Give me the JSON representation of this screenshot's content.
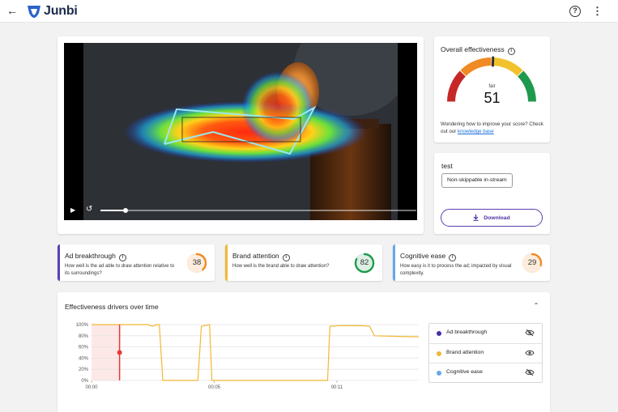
{
  "app": {
    "name": "Junbi"
  },
  "overall": {
    "title": "Overall effectiveness",
    "rating": "fair",
    "score": "51",
    "help_text": "Wondering how to improve your score? Check out our ",
    "help_link": "knowledge base",
    "needle_fraction": 0.51
  },
  "test": {
    "name": "test",
    "placement": "Non-skippable in-stream",
    "download_label": "Download"
  },
  "video": {
    "progress": 0.08
  },
  "metrics": [
    {
      "title": "Ad breakthrough",
      "desc": "How well is the ad able to draw attention relative to its surroundings?",
      "score": "38",
      "fraction": 0.38,
      "color": "#f08a24",
      "stripe": "#5b3fb2"
    },
    {
      "title": "Brand attention",
      "desc": "How well is the brand able to draw attention?",
      "score": "82",
      "fraction": 0.82,
      "color": "#1e9a4e",
      "stripe": "#f2b735"
    },
    {
      "title": "Cognitive ease",
      "desc": "How easy is it to process the ad; impacted by visual complexity.",
      "score": "29",
      "fraction": 0.29,
      "color": "#f08a24",
      "stripe": "#64a8e8"
    }
  ],
  "drivers": {
    "title": "Effectiveness drivers over time",
    "legend": [
      {
        "label": "Ad breakthrough",
        "color": "#4b2fa5",
        "visible": false
      },
      {
        "label": "Brand attention",
        "color": "#f2b735",
        "visible": true
      },
      {
        "label": "Cognitive ease",
        "color": "#64a8e8",
        "visible": false
      }
    ]
  },
  "chart_data": {
    "type": "line",
    "xlabel": "",
    "ylabel": "",
    "x_ticks": [
      "00:00",
      "00:05",
      "00:11"
    ],
    "y_ticks": [
      "100%",
      "80%",
      "60%",
      "40%",
      "20%",
      "0%"
    ],
    "ylim": [
      0,
      100
    ],
    "xlim": [
      0,
      14
    ],
    "series": [
      {
        "name": "Brand attention",
        "color": "#f2b735",
        "points": [
          [
            0,
            100
          ],
          [
            2.4,
            100
          ],
          [
            2.6,
            97
          ],
          [
            2.8,
            100
          ],
          [
            2.9,
            100
          ],
          [
            3.05,
            0
          ],
          [
            4.55,
            0
          ],
          [
            4.7,
            97
          ],
          [
            5.05,
            100
          ],
          [
            5.15,
            0
          ],
          [
            10.1,
            0
          ],
          [
            10.2,
            97
          ],
          [
            10.6,
            98
          ],
          [
            11.6,
            98
          ],
          [
            11.9,
            97
          ],
          [
            12.1,
            80
          ],
          [
            13.0,
            79
          ],
          [
            14.0,
            78
          ]
        ]
      }
    ],
    "cursor": {
      "x": 1.2,
      "y": 50
    },
    "highlight_range": [
      0,
      1.2
    ]
  }
}
